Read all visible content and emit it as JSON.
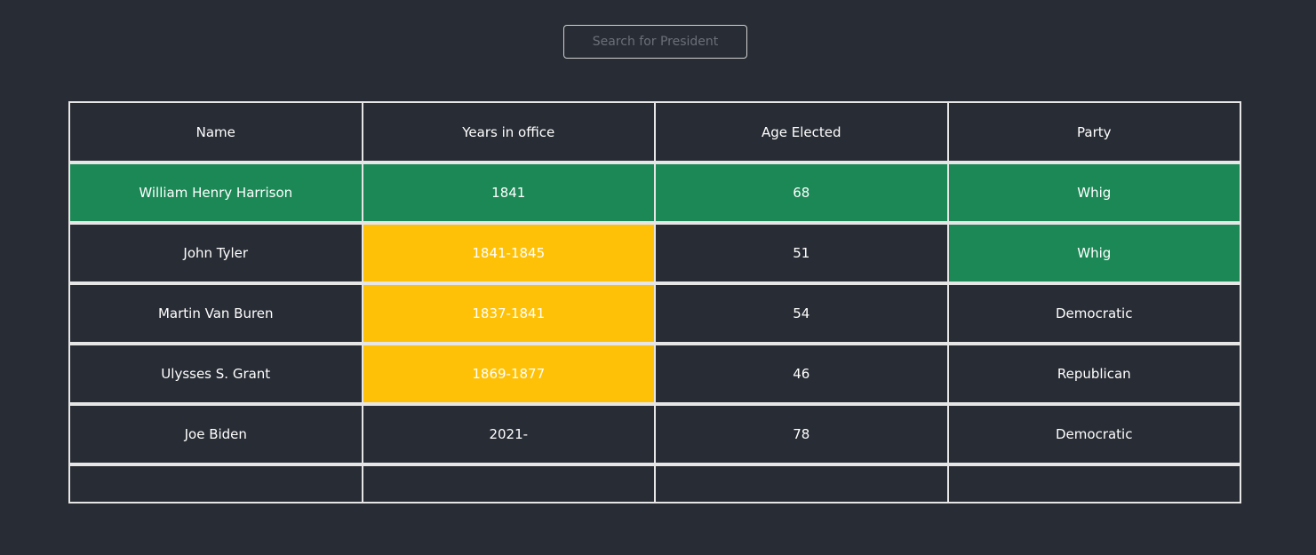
{
  "search": {
    "placeholder": "Search for President"
  },
  "table": {
    "headers": [
      "Name",
      "Years in office",
      "Age Elected",
      "Party"
    ],
    "rows": [
      {
        "name": "William Henry Harrison",
        "years": "1841",
        "age": "68",
        "party": "Whig"
      },
      {
        "name": "John Tyler",
        "years": "1841-1845",
        "age": "51",
        "party": "Whig"
      },
      {
        "name": "Martin Van Buren",
        "years": "1837-1841",
        "age": "54",
        "party": "Democratic"
      },
      {
        "name": "Ulysses S. Grant",
        "years": "1869-1877",
        "age": "46",
        "party": "Republican"
      },
      {
        "name": "Joe Biden",
        "years": "2021-",
        "age": "78",
        "party": "Democratic"
      }
    ]
  },
  "colors": {
    "background": "#282c34",
    "highlight_green": "#1b8856",
    "highlight_yellow": "#ffc107",
    "border": "#e6e6e6"
  }
}
